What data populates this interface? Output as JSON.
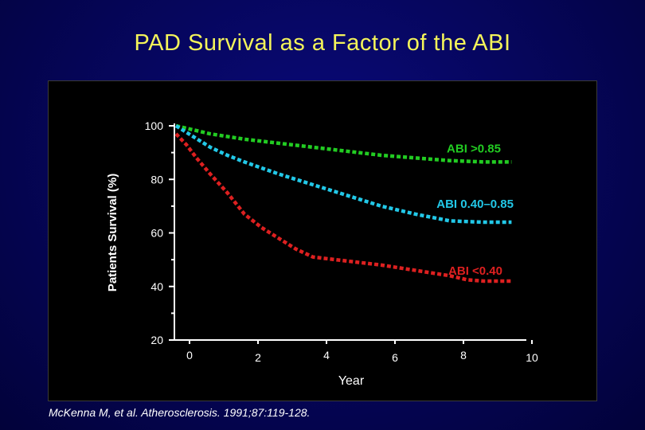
{
  "slide": {
    "title": "PAD Survival as a Factor of the ABI",
    "citation": "McKenna M, et al. Atherosclerosis. 1991;87:119-128."
  },
  "chart_data": {
    "type": "line",
    "title": "PAD Survival as a Factor of the ABI",
    "xlabel": "Year",
    "ylabel": "Patients Survival (%)",
    "xlim": [
      0,
      10
    ],
    "ylim": [
      20,
      100
    ],
    "x_ticks": [
      "0",
      "2",
      "4",
      "6",
      "8",
      "10"
    ],
    "y_ticks": [
      "100",
      "80",
      "60",
      "40",
      "20"
    ],
    "grid": false,
    "legend": "inline labels at right end of each line",
    "series": [
      {
        "name": "ABI >0.85",
        "color": "#22cc22",
        "x": [
          0,
          0.5,
          1,
          1.5,
          2,
          3,
          4,
          5,
          6,
          7,
          8,
          9,
          9.8
        ],
        "y": [
          100,
          98.5,
          97,
          96,
          95,
          93.5,
          92,
          90.5,
          89,
          88,
          87,
          86.5,
          86.5
        ]
      },
      {
        "name": "ABI 0.40–0.85",
        "color": "#22c8e8",
        "x": [
          0,
          0.5,
          1,
          1.5,
          2,
          3,
          4,
          5,
          6,
          7,
          8,
          9,
          9.8
        ],
        "y": [
          100,
          96,
          92,
          89,
          86.5,
          82,
          78,
          74,
          70,
          67,
          64.5,
          64,
          64
        ]
      },
      {
        "name": "ABI <0.40",
        "color": "#dd2020",
        "x": [
          0,
          0.3,
          0.6,
          1,
          1.5,
          2,
          2.5,
          3,
          3.5,
          4,
          5,
          6,
          7,
          8,
          8.5,
          9,
          9.8
        ],
        "y": [
          97,
          93,
          88,
          82,
          75,
          67,
          62,
          58,
          54,
          51,
          49.5,
          48,
          46,
          44,
          42.5,
          42,
          42
        ]
      }
    ]
  }
}
